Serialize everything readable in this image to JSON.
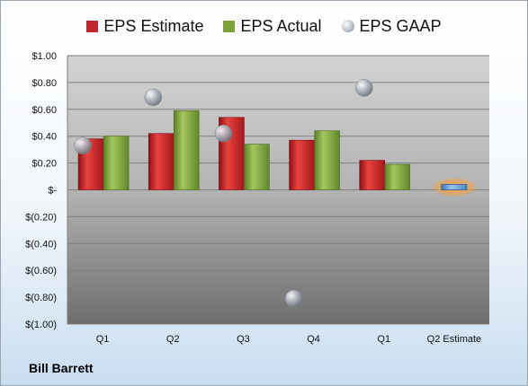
{
  "chart_data": {
    "type": "bar",
    "categories": [
      "Q1",
      "Q2",
      "Q3",
      "Q4",
      "Q1",
      "Q2 Estimate"
    ],
    "series": [
      {
        "name": "EPS Estimate",
        "color": "#c0282d",
        "values": [
          0.38,
          0.42,
          0.54,
          0.37,
          0.22,
          null
        ]
      },
      {
        "name": "EPS Actual",
        "color": "#7ea33c",
        "values": [
          0.4,
          0.59,
          0.34,
          0.44,
          0.19,
          null
        ]
      },
      {
        "name": "EPS GAAP",
        "color": "#a8adb5",
        "kind": "scatter",
        "values": [
          0.33,
          0.69,
          0.42,
          -0.81,
          0.76,
          null
        ]
      },
      {
        "name": "Q2 Estimate",
        "color": "#5b9bd5",
        "highlight": "#f5a142",
        "values": [
          null,
          null,
          null,
          null,
          null,
          0.04
        ]
      }
    ],
    "ylim": [
      -1.0,
      1.0
    ],
    "yticks": [
      1.0,
      0.8,
      0.6,
      0.4,
      0.2,
      0,
      -0.2,
      -0.4,
      -0.6,
      -0.8,
      -1.0
    ],
    "ytick_labels": [
      "$1.00",
      "$0.80",
      "$0.60",
      "$0.40",
      "$0.20",
      "$-",
      "$(0.20)",
      "$(0.40)",
      "$(0.60)",
      "$(0.80)",
      "$(1.00)"
    ],
    "grid": true,
    "legend": "top"
  },
  "company_name": "Bill Barrett"
}
